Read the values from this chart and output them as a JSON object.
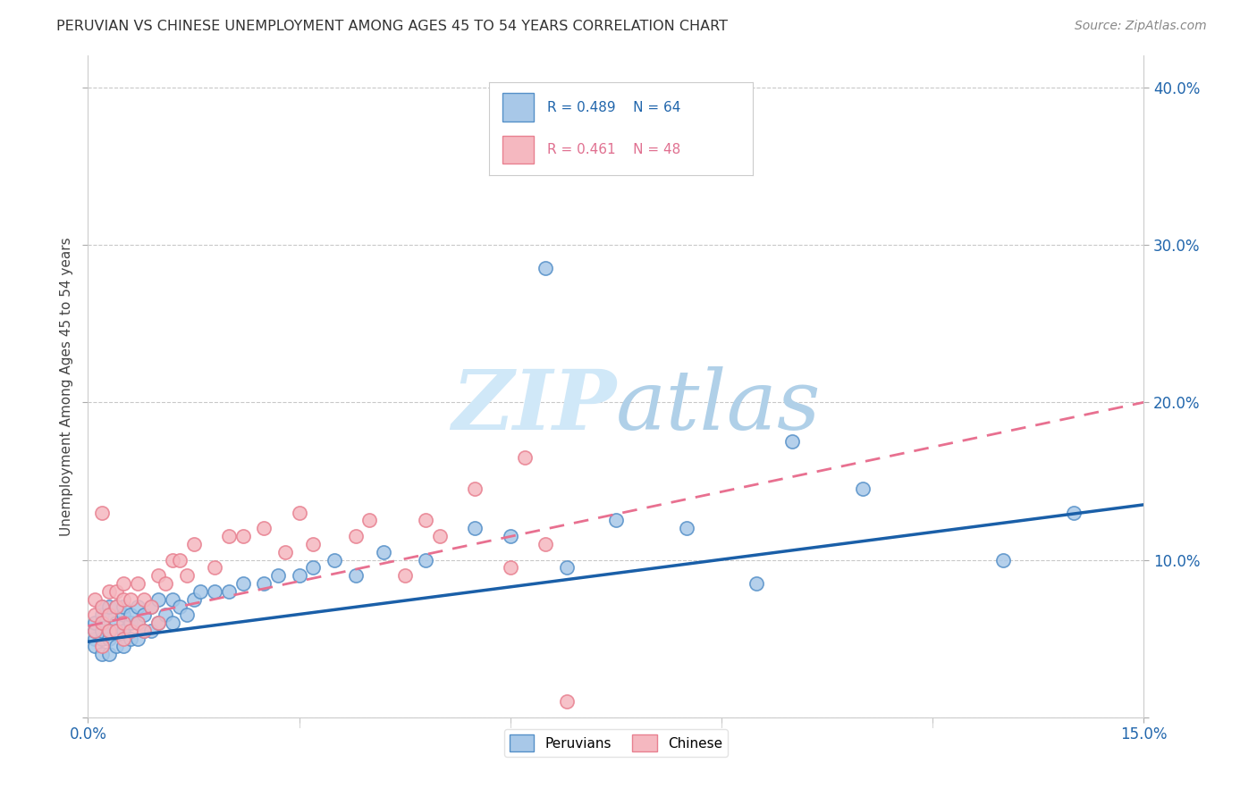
{
  "title": "PERUVIAN VS CHINESE UNEMPLOYMENT AMONG AGES 45 TO 54 YEARS CORRELATION CHART",
  "source": "Source: ZipAtlas.com",
  "ylabel": "Unemployment Among Ages 45 to 54 years",
  "xlim": [
    0.0,
    0.15
  ],
  "ylim": [
    0.0,
    0.42
  ],
  "xticks": [
    0.0,
    0.03,
    0.06,
    0.09,
    0.12,
    0.15
  ],
  "yticks": [
    0.0,
    0.1,
    0.2,
    0.3,
    0.4
  ],
  "xtick_labels_show": [
    "0.0%",
    "",
    "",
    "",
    "",
    "15.0%"
  ],
  "ytick_labels_right": [
    "",
    "10.0%",
    "20.0%",
    "30.0%",
    "40.0%"
  ],
  "background_color": "#ffffff",
  "grid_color": "#bbbbbb",
  "peruvian_color": "#a8c8e8",
  "peruvian_edge_color": "#5590c8",
  "chinese_color": "#f5b8c0",
  "chinese_edge_color": "#e88090",
  "peruvian_line_color": "#1a5fa8",
  "chinese_line_color": "#e87090",
  "axis_color": "#2166ac",
  "watermark_color": "#d0e8f8",
  "legend_r1": "R = 0.489",
  "legend_n1": "N = 64",
  "legend_r2": "R = 0.461",
  "legend_n2": "N = 48",
  "peru_x": [
    0.001,
    0.001,
    0.001,
    0.001,
    0.002,
    0.002,
    0.002,
    0.002,
    0.002,
    0.002,
    0.003,
    0.003,
    0.003,
    0.003,
    0.003,
    0.004,
    0.004,
    0.004,
    0.004,
    0.005,
    0.005,
    0.005,
    0.005,
    0.006,
    0.006,
    0.006,
    0.007,
    0.007,
    0.007,
    0.008,
    0.008,
    0.009,
    0.009,
    0.01,
    0.01,
    0.011,
    0.012,
    0.012,
    0.013,
    0.014,
    0.015,
    0.016,
    0.018,
    0.02,
    0.022,
    0.025,
    0.027,
    0.03,
    0.032,
    0.035,
    0.038,
    0.042,
    0.048,
    0.055,
    0.06,
    0.065,
    0.068,
    0.075,
    0.085,
    0.095,
    0.1,
    0.11,
    0.13,
    0.14
  ],
  "peru_y": [
    0.05,
    0.045,
    0.055,
    0.06,
    0.04,
    0.05,
    0.055,
    0.06,
    0.065,
    0.07,
    0.04,
    0.05,
    0.055,
    0.065,
    0.07,
    0.045,
    0.055,
    0.06,
    0.07,
    0.045,
    0.055,
    0.065,
    0.07,
    0.05,
    0.06,
    0.065,
    0.05,
    0.06,
    0.07,
    0.055,
    0.065,
    0.055,
    0.07,
    0.06,
    0.075,
    0.065,
    0.06,
    0.075,
    0.07,
    0.065,
    0.075,
    0.08,
    0.08,
    0.08,
    0.085,
    0.085,
    0.09,
    0.09,
    0.095,
    0.1,
    0.09,
    0.105,
    0.1,
    0.12,
    0.115,
    0.285,
    0.095,
    0.125,
    0.12,
    0.085,
    0.175,
    0.145,
    0.1,
    0.13
  ],
  "chin_x": [
    0.001,
    0.001,
    0.001,
    0.002,
    0.002,
    0.002,
    0.002,
    0.003,
    0.003,
    0.003,
    0.004,
    0.004,
    0.004,
    0.005,
    0.005,
    0.005,
    0.005,
    0.006,
    0.006,
    0.007,
    0.007,
    0.008,
    0.008,
    0.009,
    0.01,
    0.01,
    0.011,
    0.012,
    0.013,
    0.014,
    0.015,
    0.018,
    0.02,
    0.022,
    0.025,
    0.028,
    0.03,
    0.032,
    0.038,
    0.04,
    0.045,
    0.048,
    0.05,
    0.055,
    0.06,
    0.062,
    0.065,
    0.068
  ],
  "chin_y": [
    0.055,
    0.065,
    0.075,
    0.045,
    0.06,
    0.07,
    0.13,
    0.055,
    0.065,
    0.08,
    0.055,
    0.07,
    0.08,
    0.05,
    0.06,
    0.075,
    0.085,
    0.055,
    0.075,
    0.06,
    0.085,
    0.055,
    0.075,
    0.07,
    0.06,
    0.09,
    0.085,
    0.1,
    0.1,
    0.09,
    0.11,
    0.095,
    0.115,
    0.115,
    0.12,
    0.105,
    0.13,
    0.11,
    0.115,
    0.125,
    0.09,
    0.125,
    0.115,
    0.145,
    0.095,
    0.165,
    0.11,
    0.01
  ],
  "peru_trend_x": [
    0.0,
    0.15
  ],
  "peru_trend_y": [
    0.048,
    0.135
  ],
  "chin_trend_x": [
    0.0,
    0.15
  ],
  "chin_trend_y": [
    0.058,
    0.2
  ]
}
